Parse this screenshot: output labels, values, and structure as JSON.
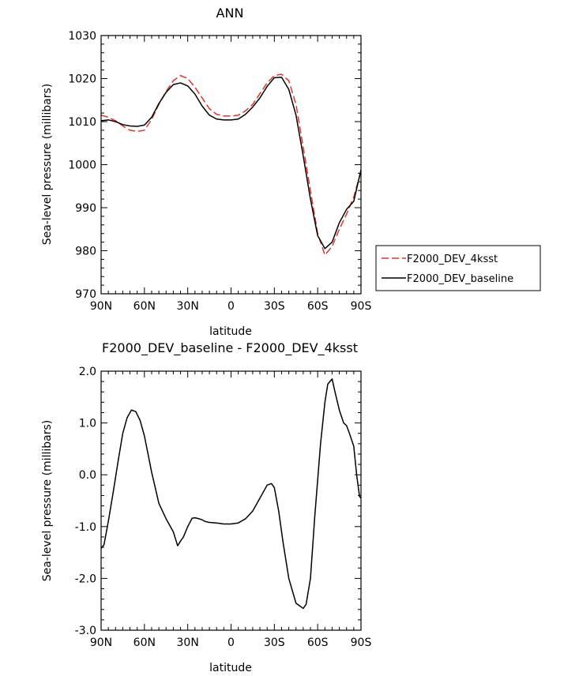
{
  "chart_data": [
    {
      "type": "line",
      "title": "ANN",
      "xlabel": "latitude",
      "ylabel": "Sea-level pressure (millibars)",
      "xlim": [
        90,
        -90
      ],
      "ylim": [
        970,
        1030
      ],
      "xticks": [
        90,
        60,
        30,
        0,
        -30,
        -60,
        -90
      ],
      "xtick_labels": [
        "90N",
        "60N",
        "30N",
        "0",
        "30S",
        "60S",
        "90S"
      ],
      "yticks": [
        970,
        980,
        990,
        1000,
        1010,
        1020,
        1030
      ],
      "ytick_labels": [
        "970",
        "980",
        "990",
        "1000",
        "1010",
        "1020",
        "1030"
      ],
      "legend": "outside-right",
      "series": [
        {
          "name": "F2000_DEV_4ksst",
          "color": "#e8302a",
          "dash": "dashed",
          "x": [
            90,
            85,
            80,
            75,
            70,
            65,
            60,
            55,
            50,
            45,
            40,
            35,
            30,
            25,
            20,
            15,
            10,
            5,
            0,
            -5,
            -10,
            -15,
            -20,
            -25,
            -30,
            -35,
            -40,
            -45,
            -50,
            -55,
            -60,
            -65,
            -70,
            -75,
            -80,
            -85,
            -90
          ],
          "y": [
            1011.5,
            1011.0,
            1010.2,
            1009.0,
            1008.0,
            1007.7,
            1008.0,
            1010.5,
            1014.0,
            1017.0,
            1019.5,
            1020.7,
            1020.0,
            1018.0,
            1015.5,
            1013.0,
            1011.7,
            1011.3,
            1011.3,
            1011.5,
            1012.5,
            1014.0,
            1016.5,
            1019.0,
            1020.7,
            1021.0,
            1019.5,
            1014.0,
            1004.0,
            994.0,
            984.0,
            979.0,
            981.0,
            985.0,
            988.5,
            992.5,
            998.5
          ]
        },
        {
          "name": "F2000_DEV_baseline",
          "color": "#000000",
          "dash": "solid",
          "x": [
            90,
            85,
            80,
            75,
            70,
            65,
            60,
            55,
            50,
            45,
            40,
            35,
            30,
            25,
            20,
            15,
            10,
            5,
            0,
            -5,
            -10,
            -15,
            -20,
            -25,
            -30,
            -35,
            -40,
            -45,
            -50,
            -55,
            -60,
            -65,
            -70,
            -75,
            -80,
            -85,
            -90
          ],
          "y": [
            1010.2,
            1010.4,
            1010.0,
            1009.3,
            1009.0,
            1008.9,
            1009.2,
            1011.0,
            1014.2,
            1016.8,
            1018.6,
            1019.0,
            1018.3,
            1016.4,
            1013.6,
            1011.5,
            1010.6,
            1010.4,
            1010.4,
            1010.6,
            1011.7,
            1013.4,
            1015.5,
            1018.2,
            1020.2,
            1020.3,
            1017.5,
            1011.5,
            1002.0,
            992.0,
            983.5,
            980.5,
            982.0,
            986.5,
            989.6,
            991.5,
            998.8
          ]
        }
      ]
    },
    {
      "type": "line",
      "title": "F2000_DEV_baseline - F2000_DEV_4ksst",
      "xlabel": "latitude",
      "ylabel": "Sea-level pressure (millibars)",
      "xlim": [
        90,
        -90
      ],
      "ylim": [
        -3.0,
        2.0
      ],
      "xticks": [
        90,
        60,
        30,
        0,
        -30,
        -60,
        -90
      ],
      "xtick_labels": [
        "90N",
        "60N",
        "30N",
        "0",
        "30S",
        "60S",
        "90S"
      ],
      "yticks": [
        -3.0,
        -2.0,
        -1.0,
        0.0,
        1.0,
        2.0
      ],
      "ytick_labels": [
        "-3.0",
        "-2.0",
        "-1.0",
        "0.0",
        "1.0",
        "2.0"
      ],
      "series": [
        {
          "color": "#000000",
          "dash": "solid",
          "x": [
            90,
            88,
            85,
            82,
            78,
            75,
            72,
            69,
            66,
            63,
            60,
            55,
            50,
            45,
            40,
            37,
            35,
            33,
            30,
            27,
            25,
            22,
            20,
            18,
            15,
            10,
            5,
            0,
            -5,
            -10,
            -15,
            -20,
            -25,
            -28,
            -30,
            -33,
            -36,
            -40,
            -45,
            -50,
            -52,
            -55,
            -58,
            -62,
            -65,
            -67,
            -70,
            -72,
            -75,
            -78,
            -80,
            -82,
            -85,
            -87,
            -89,
            -90
          ],
          "y": [
            -1.42,
            -1.35,
            -0.9,
            -0.4,
            0.3,
            0.8,
            1.1,
            1.25,
            1.22,
            1.05,
            0.75,
            0.05,
            -0.55,
            -0.85,
            -1.1,
            -1.37,
            -1.28,
            -1.2,
            -1.0,
            -0.84,
            -0.83,
            -0.85,
            -0.87,
            -0.9,
            -0.92,
            -0.93,
            -0.95,
            -0.95,
            -0.93,
            -0.85,
            -0.7,
            -0.45,
            -0.2,
            -0.17,
            -0.25,
            -0.7,
            -1.3,
            -2.0,
            -2.48,
            -2.58,
            -2.5,
            -2.0,
            -0.8,
            0.6,
            1.4,
            1.75,
            1.85,
            1.6,
            1.25,
            1.0,
            0.95,
            0.8,
            0.55,
            0.0,
            -0.42,
            -0.45
          ]
        }
      ]
    }
  ]
}
